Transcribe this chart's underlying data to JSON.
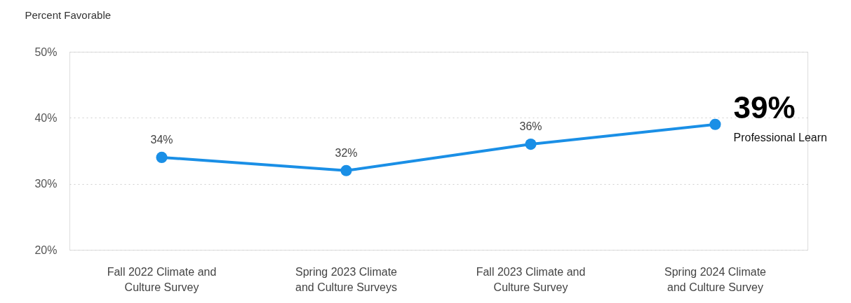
{
  "chart_data": {
    "type": "line",
    "ylabel": "Percent Favorable",
    "categories": [
      "Fall 2022 Climate and Culture Survey",
      "Spring 2023 Climate and Culture Surveys",
      "Fall 2023 Climate and Culture Survey",
      "Spring 2024 Climate and Culture Survey"
    ],
    "series": [
      {
        "name": "Professional Learn",
        "color": "#1a8fe6",
        "values": [
          34,
          32,
          36,
          39
        ]
      }
    ],
    "value_labels": [
      "34%",
      "32%",
      "36%",
      "39%"
    ],
    "ylim": [
      20,
      50
    ],
    "yticks": [
      {
        "value": 20,
        "label": "20%"
      },
      {
        "value": 30,
        "label": "30%"
      },
      {
        "value": 40,
        "label": "40%"
      },
      {
        "value": 50,
        "label": "50%"
      }
    ],
    "grid": "y",
    "marker": "circle",
    "line_style": "solid"
  }
}
